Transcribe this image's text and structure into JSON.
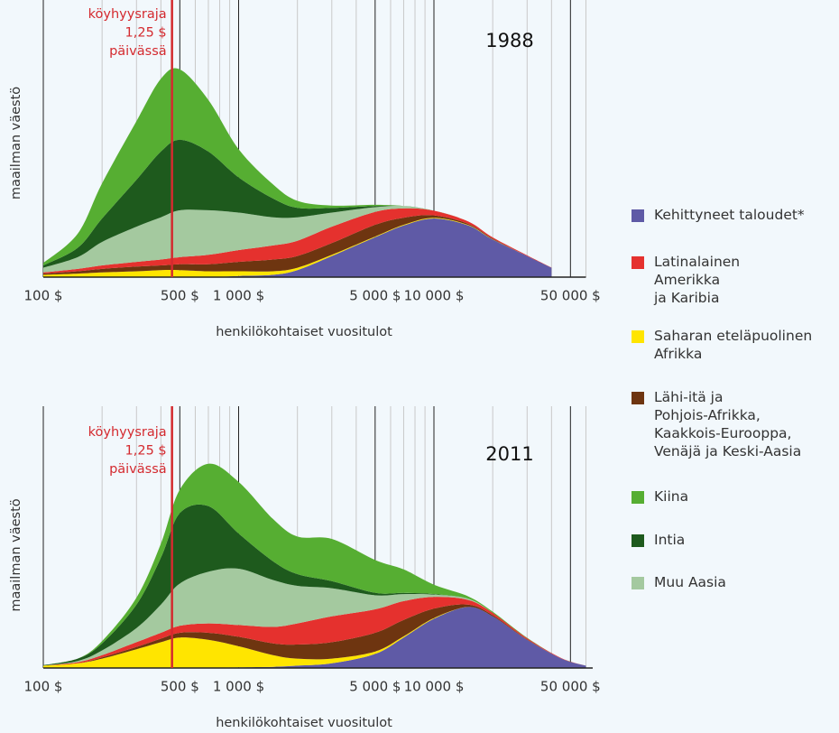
{
  "chart_data": [
    {
      "type": "stacked-area",
      "title": "1988",
      "x_label": "henkilökohtaiset vuositulot",
      "y_label": "maailman väestö",
      "log_x": true,
      "xlim": [
        100,
        60000
      ],
      "ylim": [
        0,
        100
      ],
      "xticks": [
        {
          "value": 100,
          "label": "100 $"
        },
        {
          "value": 500,
          "label": "500 $"
        },
        {
          "value": 1000,
          "label": "1 000 $"
        },
        {
          "value": 5000,
          "label": "5 000 $"
        },
        {
          "value": 10000,
          "label": "10 000 $"
        },
        {
          "value": 50000,
          "label": "50 000 $"
        }
      ],
      "minor_xticks": [
        200,
        300,
        400,
        600,
        700,
        800,
        900,
        2000,
        3000,
        4000,
        6000,
        7000,
        8000,
        9000,
        20000,
        30000,
        40000,
        60000
      ],
      "poverty_line": 456,
      "annotation": [
        "köyhyysraja",
        "1,25 $",
        "päivässä"
      ],
      "x": [
        100,
        150,
        200,
        300,
        400,
        500,
        700,
        1000,
        1500,
        2000,
        3000,
        5000,
        7000,
        10000,
        15000,
        20000,
        30000,
        40000
      ],
      "stack_order": [
        0,
        2,
        3,
        1,
        6,
        5,
        4
      ],
      "series": [
        {
          "name": "Kehittyneet taloudet*",
          "color": "#5f5aa6",
          "values": [
            0,
            0,
            0,
            0,
            0,
            0,
            0,
            0.5,
            1,
            3,
            9,
            17,
            22,
            25,
            22,
            16,
            9,
            4
          ]
        },
        {
          "name": "Latinalainen\nAmerikka\nja Karibia",
          "color": "#e5312e",
          "values": [
            0.5,
            1,
            1.5,
            2,
            2.5,
            3,
            4,
            5,
            6,
            6.5,
            7,
            5.5,
            4,
            2,
            1,
            0.5,
            0.3,
            0.1
          ]
        },
        {
          "name": "Saharan eteläpuolinen\nAfrikka",
          "color": "#ffe500",
          "values": [
            1,
            1.5,
            2,
            2.5,
            3,
            3,
            2.5,
            2,
            1.5,
            1,
            0.5,
            0.3,
            0.3,
            0.3,
            0.2,
            0.1,
            0,
            0
          ]
        },
        {
          "name": "Lähi-itä ja\nPohjois-Afrikka,\nKaakkois-Eurooppa,\nVenäjä ja Keski-Aasia",
          "color": "#6e3510",
          "values": [
            0.5,
            1,
            1.5,
            2,
            2,
            2.5,
            3,
            4,
            5,
            5,
            5,
            5,
            3,
            1,
            0.5,
            0.3,
            0,
            0
          ]
        },
        {
          "name": "Kiina",
          "color": "#56ae32",
          "values": [
            1,
            6,
            15,
            25,
            31,
            30,
            22,
            12,
            6,
            3,
            1,
            0.5,
            0,
            0,
            0,
            0,
            0,
            0
          ]
        },
        {
          "name": "Intia",
          "color": "#1e5a1d",
          "values": [
            1,
            4,
            10,
            20,
            28,
            30,
            25,
            15,
            8,
            4,
            2,
            0.5,
            0,
            0,
            0,
            0,
            0,
            0
          ]
        },
        {
          "name": "Muu Aasia",
          "color": "#a4c99f",
          "values": [
            2,
            5,
            10,
            15,
            18,
            20,
            19,
            16,
            12,
            10,
            6,
            2,
            1,
            0,
            0,
            0,
            0,
            0
          ]
        }
      ]
    },
    {
      "type": "stacked-area",
      "title": "2011",
      "x_label": "henkilökohtaiset vuositulot",
      "y_label": "maailman väestö",
      "log_x": true,
      "xlim": [
        100,
        65000
      ],
      "ylim": [
        0,
        100
      ],
      "xticks": [
        {
          "value": 100,
          "label": "100 $"
        },
        {
          "value": 500,
          "label": "500 $"
        },
        {
          "value": 1000,
          "label": "1 000 $"
        },
        {
          "value": 5000,
          "label": "5 000 $"
        },
        {
          "value": 10000,
          "label": "10 000 $"
        },
        {
          "value": 50000,
          "label": "50 000 $"
        }
      ],
      "minor_xticks": [
        200,
        300,
        400,
        600,
        700,
        800,
        900,
        2000,
        3000,
        4000,
        6000,
        7000,
        8000,
        9000,
        20000,
        30000,
        40000,
        60000
      ],
      "poverty_line": 456,
      "annotation": [
        "köyhyysraja",
        "1,25 $",
        "päivässä"
      ],
      "x": [
        100,
        150,
        200,
        300,
        400,
        500,
        700,
        1000,
        1500,
        2000,
        3000,
        5000,
        7000,
        10000,
        15000,
        20000,
        30000,
        45000,
        60000
      ],
      "stack_order": [
        0,
        2,
        3,
        1,
        6,
        5,
        4
      ],
      "series": [
        {
          "color": "#5f5aa6",
          "values": [
            0,
            0,
            0,
            0,
            0,
            0,
            0,
            0.3,
            0.5,
            1,
            2,
            6,
            13,
            21,
            26,
            22,
            12,
            4,
            1
          ]
        },
        {
          "color": "#e5312e",
          "values": [
            0,
            0.5,
            1,
            2,
            2.5,
            3,
            4,
            5,
            7,
            9,
            11,
            10,
            8,
            5,
            2,
            1,
            0.5,
            0.2,
            0
          ]
        },
        {
          "color": "#ffe500",
          "values": [
            1,
            2,
            4,
            8,
            11,
            13,
            12,
            9,
            5,
            3,
            2,
            1,
            0.5,
            0.3,
            0,
            0,
            0,
            0,
            0
          ]
        },
        {
          "color": "#6e3510",
          "values": [
            0,
            0,
            0.5,
            1,
            1.5,
            2,
            3,
            4,
            5,
            6,
            7,
            8,
            7,
            4,
            1,
            0.5,
            0.2,
            0,
            0
          ]
        },
        {
          "color": "#56ae32",
          "values": [
            0,
            0,
            1,
            3,
            6,
            10,
            18,
            22,
            18,
            16,
            18,
            14,
            10,
            4,
            1,
            0.5,
            0.2,
            0,
            0
          ]
        },
        {
          "color": "#1e5a1d",
          "values": [
            0.2,
            1,
            3,
            10,
            20,
            30,
            28,
            15,
            8,
            5,
            3,
            1,
            0.5,
            0.2,
            0,
            0,
            0,
            0,
            0
          ]
        },
        {
          "color": "#a4c99f",
          "values": [
            0,
            0.5,
            2,
            6,
            12,
            18,
            22,
            24,
            20,
            16,
            12,
            6,
            3,
            1,
            0.5,
            0,
            0,
            0,
            0
          ]
        }
      ]
    }
  ]
}
